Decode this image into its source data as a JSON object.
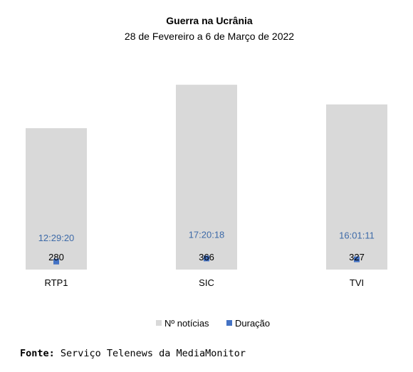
{
  "chart_data": {
    "type": "bar",
    "title": "Guerra na Ucrânia",
    "subtitle": "28 de Fevereiro a 6 de Março de 2022",
    "categories": [
      "RTP1",
      "SIC",
      "TVI"
    ],
    "series": [
      {
        "name": "Nº notícias",
        "values": [
          280,
          366,
          327
        ],
        "labels": [
          "280",
          "366",
          "327"
        ],
        "color": "#d9d9d9",
        "marker": "bar",
        "axis": "primary"
      },
      {
        "name": "Duração",
        "values": [
          "12:29:20",
          "17:20:18",
          "16:01:11"
        ],
        "labels": [
          "12:29:20",
          "17:20:18",
          "16:01:11"
        ],
        "color": "#4472c4",
        "marker": "square",
        "axis": "secondary"
      }
    ],
    "ylim": [
      0,
      400
    ],
    "legend": "bottom",
    "grid": false
  },
  "source": {
    "label": "Fonte:",
    "text": " Serviço Telenews da MediaMonitor"
  }
}
